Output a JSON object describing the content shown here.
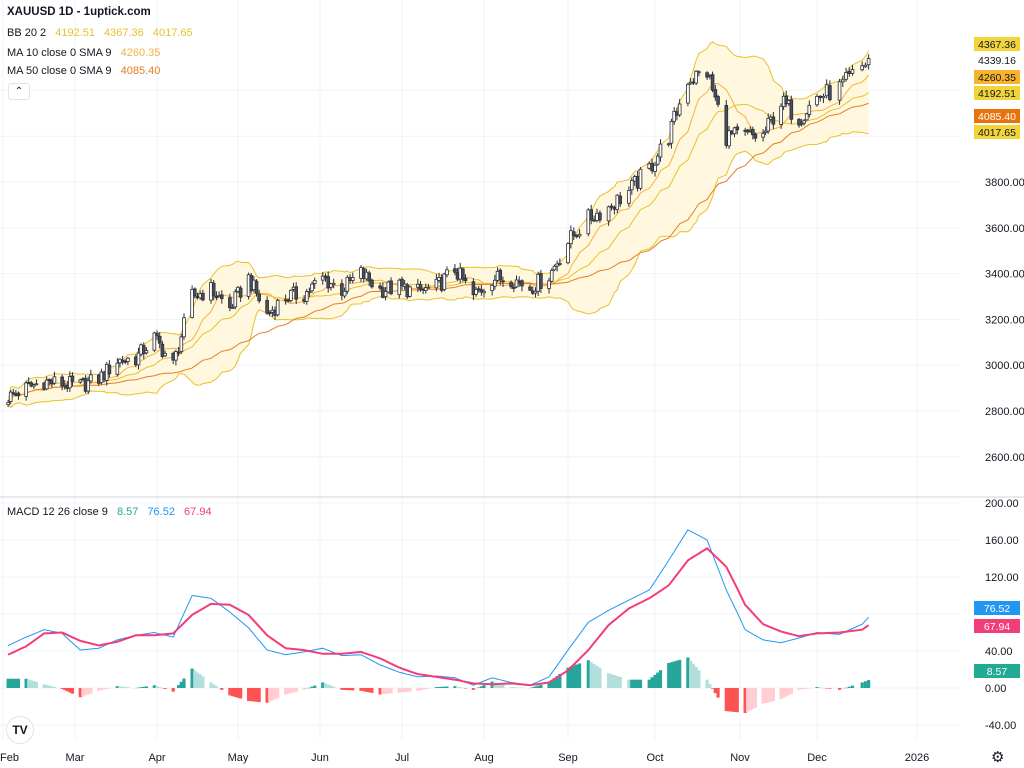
{
  "header": {
    "symbol_title": "XAUUSD 1D - 1uptick.com"
  },
  "legend": {
    "bb": {
      "label": "BB 20 2",
      "basis": "4192.51",
      "upper": "4367.36",
      "lower": "4017.65"
    },
    "ma10": {
      "label": "MA 10 close 0 SMA 9",
      "value": "4260.35"
    },
    "ma50": {
      "label": "MA 50 close 0 SMA 9",
      "value": "4085.40"
    },
    "macd": {
      "label": "MACD 12 26 close 9",
      "hist": "8.57",
      "macd": "76.52",
      "signal": "67.94"
    }
  },
  "controls": {
    "collapse_icon": "chevron-up-icon",
    "settings_icon": "gear-icon",
    "logo_text": "TV"
  },
  "colors": {
    "bb": "#e6c229",
    "bb_fill": "#fff6d6",
    "ma10": "#f5b041",
    "ma50": "#e67e22",
    "macd": "#2196f3",
    "signal": "#f23d78",
    "hist_up_strong": "#26a69a",
    "hist_up_weak": "#b2dfdb",
    "hist_down_strong": "#ff5252",
    "hist_down_weak": "#ffcdd2",
    "candle": "#2a2e39",
    "grid": "#f0f3fa"
  },
  "chart_data": [
    {
      "type": "candlestick",
      "symbol": "XAUUSD",
      "interval": "1D",
      "y_ticks": [
        "3800.00",
        "3600.00",
        "3400.00",
        "3200.00",
        "3000.00",
        "2800.00",
        "2600.00"
      ],
      "x_tick_labels": [
        "Feb",
        "Mar",
        "Apr",
        "May",
        "Jun",
        "Jul",
        "Aug",
        "Sep",
        "Oct",
        "Nov",
        "Dec",
        "2026"
      ],
      "weekly_dates": [
        "2025-02-03",
        "2025-02-10",
        "2025-02-17",
        "2025-02-24",
        "2025-03-03",
        "2025-03-10",
        "2025-03-17",
        "2025-03-24",
        "2025-03-31",
        "2025-04-07",
        "2025-04-14",
        "2025-04-21",
        "2025-04-28",
        "2025-05-05",
        "2025-05-12",
        "2025-05-19",
        "2025-05-26",
        "2025-06-02",
        "2025-06-09",
        "2025-06-16",
        "2025-06-23",
        "2025-06-30",
        "2025-07-07",
        "2025-07-14",
        "2025-07-21",
        "2025-07-28",
        "2025-08-04",
        "2025-08-11",
        "2025-08-18",
        "2025-08-25",
        "2025-09-01",
        "2025-09-08",
        "2025-09-15",
        "2025-09-22",
        "2025-09-29",
        "2025-10-06",
        "2025-10-13",
        "2025-10-20",
        "2025-10-27",
        "2025-11-03",
        "2025-11-10",
        "2025-11-17",
        "2025-11-24",
        "2025-12-01",
        "2025-12-08",
        "2025-12-15",
        "2025-12-17"
      ],
      "weekly_close": [
        2860,
        2900,
        2930,
        2920,
        2910,
        2940,
        3020,
        3030,
        3120,
        3000,
        3300,
        3330,
        3250,
        3380,
        3220,
        3300,
        3310,
        3380,
        3330,
        3400,
        3330,
        3340,
        3320,
        3340,
        3420,
        3300,
        3380,
        3380,
        3340,
        3390,
        3540,
        3640,
        3690,
        3760,
        3860,
        4000,
        4250,
        4280,
        4000,
        4000,
        4000,
        4150,
        4080,
        4170,
        4210,
        4300,
        4339.16
      ],
      "last_close": "4339.16",
      "bb_upper": "4367.36",
      "bb_basis": "4192.51",
      "bb_lower": "4017.65",
      "ma10": "4260.35",
      "ma50": "4085.40"
    },
    {
      "type": "line",
      "name": "MACD 12 26 close 9",
      "y_ticks": [
        "200.00",
        "160.00",
        "120.00",
        "40.00",
        "0.00",
        "-40.00"
      ],
      "ylim": [
        -60,
        200
      ],
      "macd": [
        46,
        55,
        63,
        59,
        41,
        43,
        52,
        57,
        60,
        55,
        100,
        97,
        82,
        65,
        41,
        36,
        39,
        43,
        35,
        36,
        25,
        17,
        12,
        13,
        11,
        3,
        11,
        6,
        3,
        12,
        41,
        71,
        84,
        95,
        106,
        138,
        171,
        160,
        106,
        63,
        52,
        49,
        54,
        60,
        58,
        69,
        76.52
      ],
      "signal": [
        36,
        45,
        59,
        60,
        51,
        46,
        50,
        57,
        57,
        59,
        79,
        91,
        90,
        79,
        57,
        43,
        41,
        37,
        37,
        39,
        32,
        22,
        15,
        12,
        9,
        5,
        4,
        5,
        3,
        6,
        19,
        41,
        68,
        86,
        97,
        111,
        138,
        151,
        131,
        90,
        69,
        61,
        56,
        59,
        60,
        63,
        67.94
      ],
      "hist_last": "8.57"
    }
  ]
}
